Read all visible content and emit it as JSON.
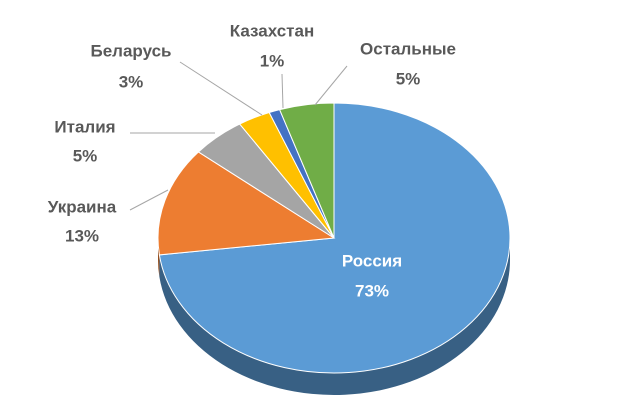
{
  "chart_data": {
    "type": "pie3d",
    "categories": [
      "Россия",
      "Украина",
      "Италия",
      "Беларусь",
      "Казахстан",
      "Остальные"
    ],
    "values": [
      73,
      13,
      5,
      3,
      1,
      5
    ],
    "value_labels": [
      "73%",
      "13%",
      "5%",
      "3%",
      "1%",
      "5%"
    ],
    "colors": [
      "#5b9bd5",
      "#ed7d31",
      "#a5a5a5",
      "#ffc000",
      "#4472c4",
      "#70ad47"
    ]
  }
}
